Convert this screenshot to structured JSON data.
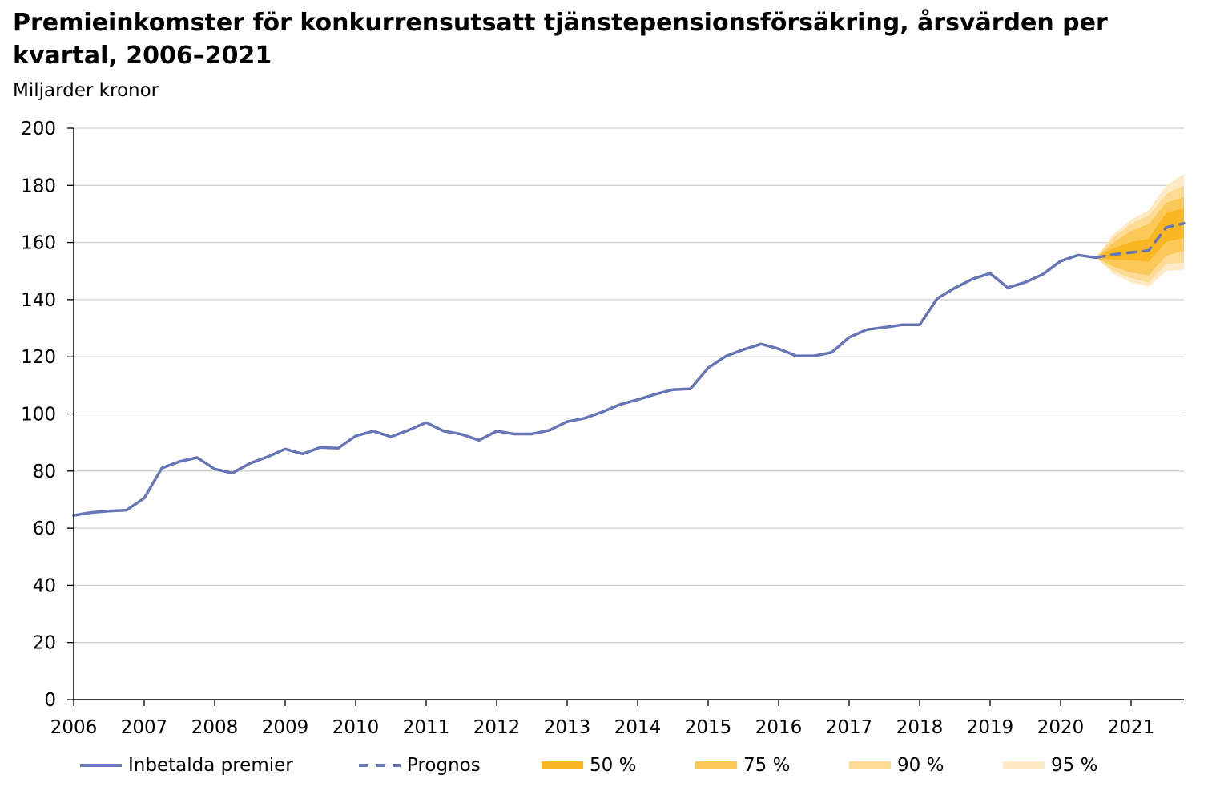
{
  "title": "Premieinkomster för konkurrensutsatt tjänstepensionsförsäkring, årsvärden per kvartal, 2006–2021",
  "unit_label": "Miljarder kronor",
  "colors": {
    "actual": "#6776b6",
    "forecast": "#6776b6",
    "band50": "#f8b723",
    "band75": "#fbc95a",
    "band90": "#fddb94",
    "band95": "#feebc6",
    "grid": "#d0d0d0",
    "axis": "#000000"
  },
  "chart_data": {
    "type": "line",
    "title": "Premieinkomster för konkurrensutsatt tjänstepensionsförsäkring, årsvärden per kvartal, 2006–2021",
    "ylabel": "Miljarder kronor",
    "xlim": [
      2006.0,
      2021.75
    ],
    "ylim": [
      0,
      200
    ],
    "y_ticks": [
      0,
      20,
      40,
      60,
      80,
      100,
      120,
      140,
      160,
      180,
      200
    ],
    "x_ticks": [
      "2006",
      "2007",
      "2008",
      "2009",
      "2010",
      "2011",
      "2012",
      "2013",
      "2014",
      "2015",
      "2016",
      "2017",
      "2018",
      "2019",
      "2020",
      "2021"
    ],
    "grid": true,
    "legend_position": "bottom",
    "series": [
      {
        "name": "Inbetalda premier",
        "style": "solid",
        "x": [
          2006.0,
          2006.25,
          2006.5,
          2006.75,
          2007.0,
          2007.25,
          2007.5,
          2007.75,
          2008.0,
          2008.25,
          2008.5,
          2008.75,
          2009.0,
          2009.25,
          2009.5,
          2009.75,
          2010.0,
          2010.25,
          2010.5,
          2010.75,
          2011.0,
          2011.25,
          2011.5,
          2011.75,
          2012.0,
          2012.25,
          2012.5,
          2012.75,
          2013.0,
          2013.25,
          2013.5,
          2013.75,
          2014.0,
          2014.25,
          2014.5,
          2014.75,
          2015.0,
          2015.25,
          2015.5,
          2015.75,
          2016.0,
          2016.25,
          2016.5,
          2016.75,
          2017.0,
          2017.25,
          2017.5,
          2017.75,
          2018.0,
          2018.25,
          2018.5,
          2018.75,
          2019.0,
          2019.25,
          2019.5,
          2019.75,
          2020.0,
          2020.25,
          2020.5
        ],
        "values": [
          64.5,
          65.5,
          66.0,
          66.3,
          70.5,
          81.0,
          83.3,
          84.7,
          80.7,
          79.3,
          82.7,
          85.0,
          87.7,
          86.0,
          88.3,
          88.0,
          92.3,
          94.0,
          92.0,
          94.3,
          97.0,
          94.0,
          92.9,
          90.8,
          94.0,
          93.0,
          93.0,
          94.3,
          97.3,
          98.5,
          100.7,
          103.3,
          105.0,
          106.9,
          108.5,
          108.8,
          116.1,
          120.2,
          122.5,
          124.5,
          122.8,
          120.3,
          120.3,
          121.5,
          126.8,
          129.5,
          130.3,
          131.2,
          131.2,
          140.4,
          144.1,
          147.2,
          149.2,
          144.2,
          146.1,
          148.9,
          153.5,
          155.6,
          154.7
        ]
      },
      {
        "name": "Prognos",
        "style": "dashed",
        "x": [
          2020.5,
          2020.75,
          2021.0,
          2021.25,
          2021.5,
          2021.75
        ],
        "values": [
          154.7,
          155.8,
          156.5,
          157.2,
          165.3,
          166.7
        ]
      }
    ],
    "bands": [
      {
        "name": "95 %",
        "x": [
          2020.5,
          2020.75,
          2021.0,
          2021.25,
          2021.5,
          2021.75
        ],
        "lower": [
          154.7,
          149.0,
          146.0,
          144.5,
          150.0,
          150.5
        ],
        "upper": [
          154.7,
          163.0,
          168.0,
          171.5,
          180.0,
          184.0
        ]
      },
      {
        "name": "90 %",
        "x": [
          2020.5,
          2020.75,
          2021.0,
          2021.25,
          2021.5,
          2021.75
        ],
        "lower": [
          154.7,
          150.0,
          147.5,
          146.0,
          152.5,
          153.0
        ],
        "upper": [
          154.7,
          162.0,
          166.5,
          169.5,
          177.0,
          180.0
        ]
      },
      {
        "name": "75 %",
        "x": [
          2020.5,
          2020.75,
          2021.0,
          2021.25,
          2021.5,
          2021.75
        ],
        "lower": [
          154.7,
          151.5,
          149.5,
          148.5,
          155.5,
          157.0
        ],
        "upper": [
          154.7,
          160.0,
          164.0,
          166.5,
          174.0,
          176.0
        ]
      },
      {
        "name": "50 %",
        "x": [
          2020.5,
          2020.75,
          2021.0,
          2021.25,
          2021.5,
          2021.75
        ],
        "lower": [
          154.7,
          154.0,
          153.8,
          153.3,
          160.3,
          161.5
        ],
        "upper": [
          154.7,
          158.0,
          160.2,
          161.3,
          170.5,
          172.0
        ]
      }
    ]
  },
  "legend": {
    "items": [
      {
        "label": "Inbetalda premier",
        "kind": "line-solid",
        "color_key": "actual"
      },
      {
        "label": "Prognos",
        "kind": "line-dashed",
        "color_key": "forecast"
      },
      {
        "label": "50 %",
        "kind": "band",
        "color_key": "band50"
      },
      {
        "label": "75 %",
        "kind": "band",
        "color_key": "band75"
      },
      {
        "label": "90 %",
        "kind": "band",
        "color_key": "band90"
      },
      {
        "label": "95 %",
        "kind": "band",
        "color_key": "band95"
      }
    ]
  }
}
